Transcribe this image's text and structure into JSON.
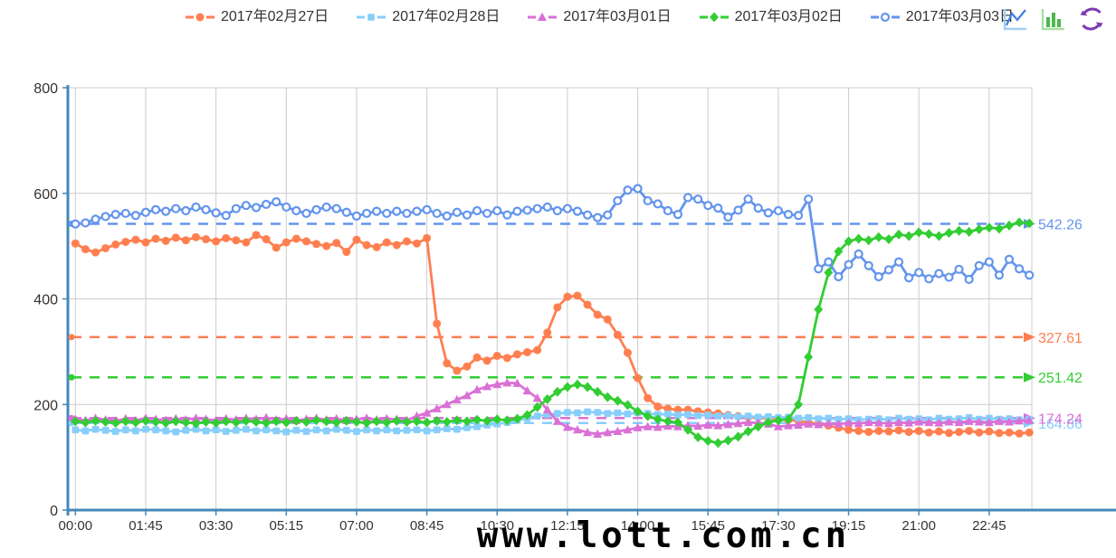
{
  "watermark": "www.lott.com.cn",
  "toolbox": {
    "icons": [
      {
        "name": "line-chart",
        "axis_color": "#9fd0f5",
        "line_color": "#3f7fe0"
      },
      {
        "name": "bar-chart",
        "axis_color": "#a8dfa3",
        "bar_color": "#4db84d"
      },
      {
        "name": "refresh",
        "color": "#7d3bb5"
      }
    ]
  },
  "chart_data": {
    "type": "line",
    "title": "",
    "legend_position": "top",
    "grid": true,
    "axis_color": "#4488bb",
    "grid_color": "#cccccc",
    "text_color": "#333333",
    "ylim": [
      0,
      800
    ],
    "y_ticks": [
      0,
      200,
      400,
      600,
      800
    ],
    "x_start": "00:00",
    "x_step_minutes": 15,
    "points_per_series": 96,
    "x_tick_labels": [
      "00:00",
      "01:45",
      "03:30",
      "05:15",
      "07:00",
      "08:45",
      "10:30",
      "12:15",
      "14:00",
      "15:45",
      "17:30",
      "19:15",
      "21:00",
      "22:45"
    ],
    "series": [
      {
        "name": "2017年02月27日",
        "color": "#ff7f50",
        "marker": "circle",
        "average_line": {
          "value": 327.61,
          "label": "327.61"
        },
        "values": [
          505,
          494,
          488,
          496,
          503,
          508,
          512,
          507,
          514,
          510,
          516,
          511,
          517,
          513,
          509,
          515,
          511,
          507,
          521,
          513,
          497,
          507,
          514,
          509,
          504,
          500,
          506,
          489,
          512,
          502,
          498,
          507,
          502,
          509,
          505,
          515,
          353,
          278,
          264,
          272,
          289,
          283,
          292,
          288,
          295,
          299,
          303,
          336,
          384,
          404,
          406,
          389,
          370,
          361,
          332,
          298,
          250,
          212,
          196,
          192,
          190,
          190,
          187,
          185,
          183,
          180,
          178,
          176,
          175,
          174,
          172,
          171,
          169,
          166,
          163,
          160,
          156,
          152,
          150,
          148,
          150,
          149,
          151,
          148,
          150,
          147,
          149,
          146,
          148,
          150,
          147,
          149,
          146,
          147,
          145,
          147
        ]
      },
      {
        "name": "2017年02月28日",
        "color": "#87cefa",
        "marker": "square",
        "average_line": {
          "value": 164.86,
          "label": "164.86"
        },
        "values": [
          152,
          150,
          153,
          151,
          149,
          152,
          150,
          153,
          152,
          150,
          148,
          151,
          153,
          150,
          152,
          149,
          151,
          153,
          150,
          152,
          150,
          148,
          151,
          149,
          152,
          150,
          153,
          151,
          149,
          152,
          150,
          152,
          150,
          151,
          152,
          150,
          152,
          154,
          153,
          156,
          158,
          161,
          163,
          166,
          170,
          174,
          178,
          181,
          183,
          185,
          184,
          186,
          185,
          183,
          184,
          182,
          184,
          183,
          181,
          182,
          180,
          181,
          179,
          180,
          178,
          179,
          177,
          178,
          176,
          177,
          175,
          176,
          174,
          175,
          173,
          174,
          172,
          173,
          171,
          172,
          173,
          171,
          174,
          172,
          173,
          171,
          174,
          172,
          173,
          175,
          172,
          174,
          172,
          173,
          171,
          172
        ]
      },
      {
        "name": "2017年03月01日",
        "color": "#da70d6",
        "marker": "triangle",
        "average_line": {
          "value": 174.24,
          "label": "174.24"
        },
        "values": [
          172,
          170,
          174,
          171,
          169,
          173,
          170,
          174,
          172,
          170,
          173,
          171,
          174,
          172,
          170,
          173,
          171,
          174,
          172,
          175,
          171,
          173,
          170,
          172,
          174,
          171,
          173,
          170,
          172,
          174,
          171,
          173,
          172,
          170,
          178,
          184,
          192,
          200,
          209,
          217,
          228,
          234,
          238,
          241,
          240,
          226,
          212,
          190,
          168,
          157,
          152,
          147,
          144,
          147,
          149,
          152,
          156,
          158,
          157,
          159,
          158,
          160,
          159,
          161,
          160,
          162,
          164,
          166,
          165,
          163,
          158,
          160,
          161,
          163,
          162,
          164,
          163,
          165,
          164,
          166,
          165,
          164,
          166,
          165,
          167,
          166,
          165,
          167,
          166,
          168,
          167,
          166,
          168,
          167,
          169,
          170
        ]
      },
      {
        "name": "2017年03月02日",
        "color": "#32cd32",
        "marker": "diamond",
        "average_line": {
          "value": 251.42,
          "label": "251.42"
        },
        "values": [
          168,
          166,
          169,
          167,
          165,
          168,
          166,
          169,
          167,
          165,
          168,
          166,
          164,
          167,
          165,
          168,
          166,
          169,
          167,
          165,
          168,
          166,
          169,
          167,
          170,
          168,
          166,
          169,
          167,
          165,
          168,
          166,
          169,
          167,
          168,
          166,
          169,
          167,
          170,
          168,
          171,
          169,
          172,
          170,
          173,
          180,
          195,
          210,
          224,
          233,
          238,
          233,
          224,
          214,
          207,
          199,
          187,
          178,
          172,
          168,
          166,
          152,
          138,
          131,
          127,
          132,
          139,
          149,
          158,
          166,
          170,
          172,
          200,
          290,
          380,
          450,
          490,
          509,
          514,
          511,
          517,
          513,
          522,
          519,
          526,
          523,
          519,
          525,
          529,
          527,
          532,
          535,
          533,
          539,
          545,
          543
        ]
      },
      {
        "name": "2017年03月03日",
        "color": "#6495ed",
        "marker": "circle-open",
        "average_line": {
          "value": 542.26,
          "label": "542.26"
        },
        "values": [
          542,
          544,
          551,
          556,
          560,
          562,
          558,
          564,
          569,
          566,
          571,
          567,
          574,
          569,
          563,
          558,
          571,
          577,
          573,
          579,
          584,
          574,
          567,
          562,
          569,
          574,
          571,
          564,
          557,
          562,
          566,
          562,
          566,
          562,
          566,
          569,
          562,
          557,
          564,
          559,
          567,
          562,
          567,
          559,
          566,
          568,
          571,
          574,
          567,
          571,
          566,
          559,
          554,
          559,
          586,
          606,
          609,
          586,
          580,
          567,
          560,
          592,
          589,
          577,
          572,
          555,
          568,
          589,
          572,
          563,
          567,
          560,
          558,
          589,
          457,
          470,
          442,
          465,
          485,
          463,
          442,
          455,
          470,
          440,
          450,
          438,
          448,
          441,
          456,
          437,
          463,
          470,
          445,
          475,
          457,
          445
        ]
      }
    ]
  }
}
